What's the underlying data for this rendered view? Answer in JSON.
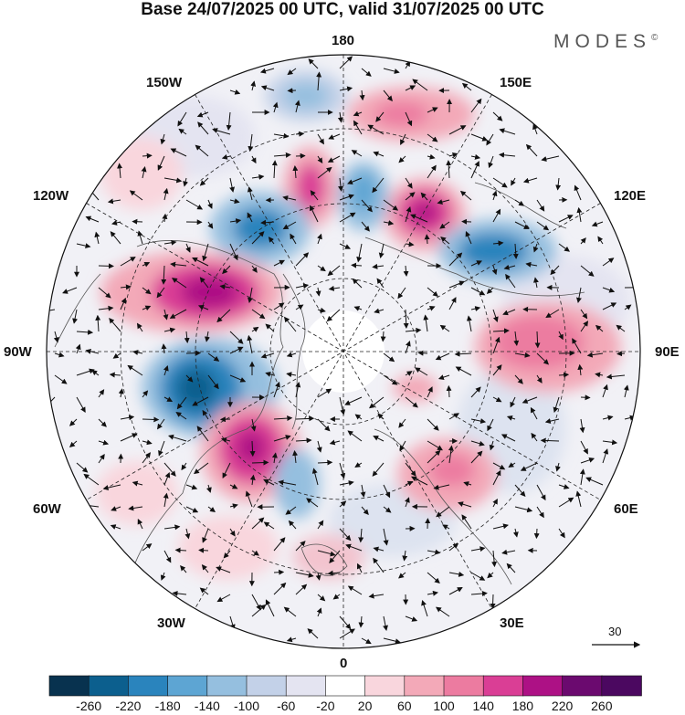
{
  "title": "Base 24/07/2025 00 UTC, valid 31/07/2025 00 UTC",
  "brand": "MODES",
  "brand_mark": "©",
  "longitude_labels": {
    "top": "180",
    "upper_left": "150W",
    "upper_right": "150E",
    "left_high": "120W",
    "right_high": "120E",
    "left": "90W",
    "right": "90E",
    "left_low": "60W",
    "right_low": "60E",
    "lower_left": "30W",
    "lower_right": "30E",
    "bottom": "0"
  },
  "vector_reference": {
    "label": "30"
  },
  "colorbar": {
    "ticks": [
      "-260",
      "-220",
      "-180",
      "-140",
      "-100",
      "-60",
      "-20",
      "20",
      "60",
      "100",
      "140",
      "180",
      "220",
      "260"
    ],
    "colors": [
      "#08324f",
      "#0c5f8e",
      "#2a84bd",
      "#5da5d3",
      "#95bfdf",
      "#c3d1e8",
      "#e4e4f1",
      "#ffffff",
      "#f9d6dd",
      "#f3a9b8",
      "#ec7ba0",
      "#da3e95",
      "#ad1185",
      "#6b0a6f",
      "#4b0860"
    ]
  },
  "anomaly_centers": [
    {
      "name": "cold-nw-pacific",
      "value": -180
    },
    {
      "name": "warm-siberia",
      "value": 200
    },
    {
      "name": "cold-east-siberia",
      "value": -180
    },
    {
      "name": "warm-canada",
      "value": 220
    },
    {
      "name": "cold-greenland-west",
      "value": -220
    },
    {
      "name": "warm-north-atlantic",
      "value": 220
    },
    {
      "name": "warm-central-asia",
      "value": 140
    },
    {
      "name": "warm-europe",
      "value": 100
    }
  ]
}
